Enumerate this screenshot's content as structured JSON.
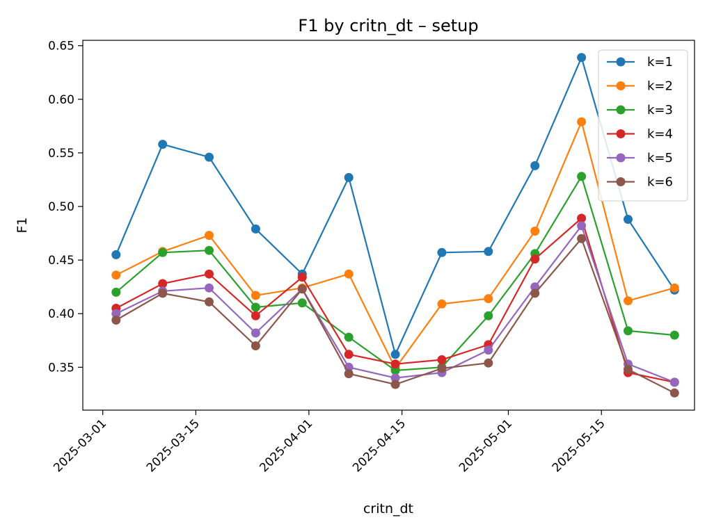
{
  "chart_data": {
    "type": "line",
    "title": "F1 by critn_dt – setup",
    "xlabel": "critn_dt",
    "ylabel": "F1",
    "x": [
      "2025-03-03",
      "2025-03-10",
      "2025-03-17",
      "2025-03-24",
      "2025-03-31",
      "2025-04-07",
      "2025-04-14",
      "2025-04-21",
      "2025-04-28",
      "2025-05-05",
      "2025-05-12",
      "2025-05-19",
      "2025-05-26"
    ],
    "x_ticks": [
      "2025-03-01",
      "2025-03-15",
      "2025-04-01",
      "2025-04-15",
      "2025-05-01",
      "2025-05-15"
    ],
    "y_ticks": [
      "0.35",
      "0.40",
      "0.45",
      "0.50",
      "0.55",
      "0.60",
      "0.65"
    ],
    "xlim": [
      "2025-02-26",
      "2025-05-29"
    ],
    "ylim": [
      0.31,
      0.655
    ],
    "grid": false,
    "legend_position": "top-right",
    "series": [
      {
        "name": "k=1",
        "color": "#1f77b4",
        "values": [
          0.455,
          0.558,
          0.546,
          0.479,
          0.437,
          0.527,
          0.362,
          0.457,
          0.458,
          0.538,
          0.639,
          0.488,
          0.422
        ]
      },
      {
        "name": "k=2",
        "color": "#ff7f0e",
        "values": [
          0.436,
          0.458,
          0.473,
          0.417,
          0.424,
          0.437,
          0.349,
          0.409,
          0.414,
          0.477,
          0.579,
          0.412,
          0.424
        ]
      },
      {
        "name": "k=3",
        "color": "#2ca02c",
        "values": [
          0.42,
          0.457,
          0.459,
          0.406,
          0.41,
          0.378,
          0.347,
          0.35,
          0.398,
          0.456,
          0.528,
          0.384,
          0.38
        ]
      },
      {
        "name": "k=4",
        "color": "#d62728",
        "values": [
          0.405,
          0.428,
          0.437,
          0.398,
          0.434,
          0.362,
          0.353,
          0.357,
          0.371,
          0.451,
          0.489,
          0.345,
          0.336
        ]
      },
      {
        "name": "k=5",
        "color": "#9467bd",
        "values": [
          0.4,
          0.421,
          0.424,
          0.382,
          0.423,
          0.35,
          0.34,
          0.345,
          0.366,
          0.425,
          0.482,
          0.353,
          0.336
        ]
      },
      {
        "name": "k=6",
        "color": "#8c564b",
        "values": [
          0.394,
          0.419,
          0.411,
          0.37,
          0.423,
          0.344,
          0.334,
          0.349,
          0.354,
          0.419,
          0.47,
          0.348,
          0.326
        ]
      }
    ]
  }
}
